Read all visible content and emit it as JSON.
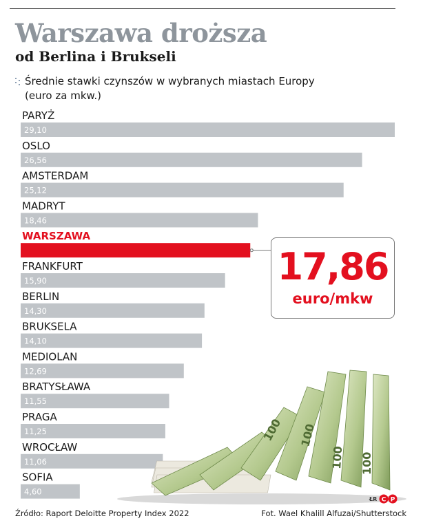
{
  "header": {
    "title": "Warszawa droższa",
    "subtitle": "od Berlina i Brukseli",
    "description": "Średnie stawki czynszów w wybranych miastach Europy (euro za mkw.)"
  },
  "callout": {
    "value": "17,86",
    "unit": "euro/mkw"
  },
  "footer": {
    "source": "Źródło: Raport Deloitte Property Index 2022",
    "credit": "Fot. Wael Khalill Alfuzai/Shutterstock",
    "logo_text": "ŁR"
  },
  "colors": {
    "bar": "#c0c4c8",
    "highlight": "#e3101f",
    "title": "#8e959c"
  },
  "chart_data": {
    "type": "bar",
    "orientation": "horizontal",
    "categories": [
      "PARYŻ",
      "OSLO",
      "AMSTERDAM",
      "MADRYT",
      "WARSZAWA",
      "FRANKFURT",
      "BERLIN",
      "BRUKSELA",
      "MEDIOLAN",
      "BRATYSŁAWA",
      "PRAGA",
      "WROCŁAW",
      "SOFIA"
    ],
    "values": [
      29.1,
      26.56,
      25.12,
      18.46,
      17.86,
      15.9,
      14.3,
      14.1,
      12.69,
      11.55,
      11.25,
      11.06,
      4.6
    ],
    "value_labels": [
      "29,10",
      "26,56",
      "25,12",
      "18,46",
      "",
      "15,90",
      "14,30",
      "14,10",
      "12,69",
      "11,55",
      "11,25",
      "11,06",
      "4,60"
    ],
    "highlight": "WARSZAWA",
    "xlim": [
      0,
      29.1
    ],
    "grid": false
  }
}
